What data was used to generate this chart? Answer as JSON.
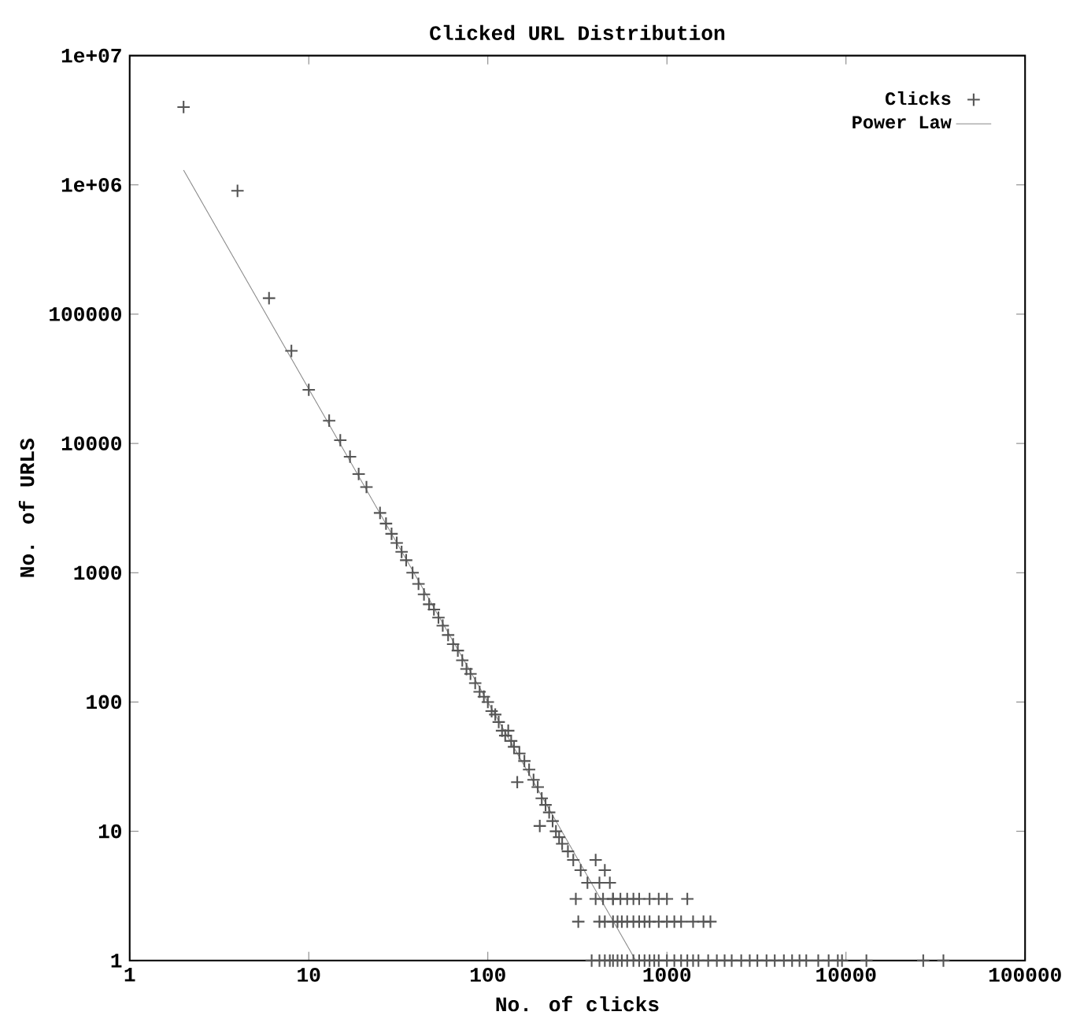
{
  "chart_data": {
    "type": "scatter",
    "title": "Clicked URL Distribution",
    "xlabel": "No. of clicks",
    "ylabel": "No. of URLS",
    "log": "xy",
    "grid": false,
    "legend": "top right",
    "xlim": [
      1,
      100000
    ],
    "ylim": [
      1,
      10000000
    ],
    "xticks": [
      1,
      10,
      100,
      1000,
      10000,
      100000
    ],
    "yticks": [
      1,
      10,
      100,
      1000,
      10000,
      100000,
      {
        "value": 1000000,
        "label": "1e+06"
      },
      {
        "value": 10000000,
        "label": "1e+07"
      }
    ],
    "series": [
      {
        "name": "Clicks",
        "marker": "cross",
        "color": "#555555",
        "x": [
          2,
          4,
          6,
          8,
          10,
          13,
          15,
          17,
          19,
          21,
          25,
          27,
          29,
          31,
          33,
          35,
          38,
          41,
          44,
          47,
          50,
          53,
          56,
          60,
          64,
          68,
          72,
          76,
          80,
          85,
          90,
          95,
          100,
          105,
          110,
          115,
          120,
          125,
          130,
          135,
          140,
          146,
          150,
          160,
          170,
          180,
          190,
          195,
          200,
          210,
          220,
          230,
          240,
          250,
          260,
          280,
          300,
          330,
          360,
          400,
          420,
          450,
          480,
          500,
          320,
          420,
          450,
          500,
          530,
          560,
          600,
          650,
          700,
          750,
          800,
          900,
          1000,
          1100,
          1200,
          1400,
          1600,
          1750,
          310,
          400,
          440,
          500,
          550,
          600,
          650,
          700,
          800,
          900,
          1000,
          1300,
          380,
          420,
          450,
          480,
          500,
          530,
          560,
          600,
          650,
          700,
          750,
          800,
          850,
          900,
          1000,
          1100,
          1200,
          1300,
          1400,
          1500,
          1700,
          1900,
          2100,
          2300,
          2600,
          2900,
          3200,
          3600,
          4000,
          4500,
          5000,
          5500,
          6000,
          7000,
          8000,
          9000,
          9500,
          13000,
          27000,
          35000
        ],
        "values": [
          4000000,
          900000,
          133000,
          52000,
          26000,
          15000,
          10600,
          7900,
          5800,
          4600,
          2900,
          2400,
          2000,
          1700,
          1450,
          1250,
          1000,
          820,
          680,
          570,
          520,
          450,
          390,
          330,
          280,
          250,
          210,
          180,
          165,
          140,
          120,
          110,
          100,
          85,
          80,
          70,
          60,
          55,
          60,
          50,
          45,
          24,
          40,
          35,
          30,
          25,
          22,
          11,
          18,
          16,
          14,
          12,
          10,
          9,
          8,
          7,
          6,
          5,
          4,
          6,
          4,
          5,
          4,
          3,
          2,
          2,
          2,
          2,
          2,
          2,
          2,
          2,
          2,
          2,
          2,
          2,
          2,
          2,
          2,
          2,
          2,
          2,
          3,
          3,
          3,
          3,
          3,
          3,
          3,
          3,
          3,
          3,
          3,
          3,
          1,
          1,
          1,
          1,
          1,
          1,
          1,
          1,
          1,
          1,
          1,
          1,
          1,
          1,
          1,
          1,
          1,
          1,
          1,
          1,
          1,
          1,
          1,
          1,
          1,
          1,
          1,
          1,
          1,
          1,
          1,
          1,
          1,
          1,
          1,
          1,
          1,
          1,
          1,
          1
        ]
      },
      {
        "name": "Power Law",
        "type": "line",
        "line_style": "solid",
        "color": "#888888",
        "x": [
          2,
          670
        ],
        "values": [
          1300000,
          1
        ]
      }
    ]
  }
}
